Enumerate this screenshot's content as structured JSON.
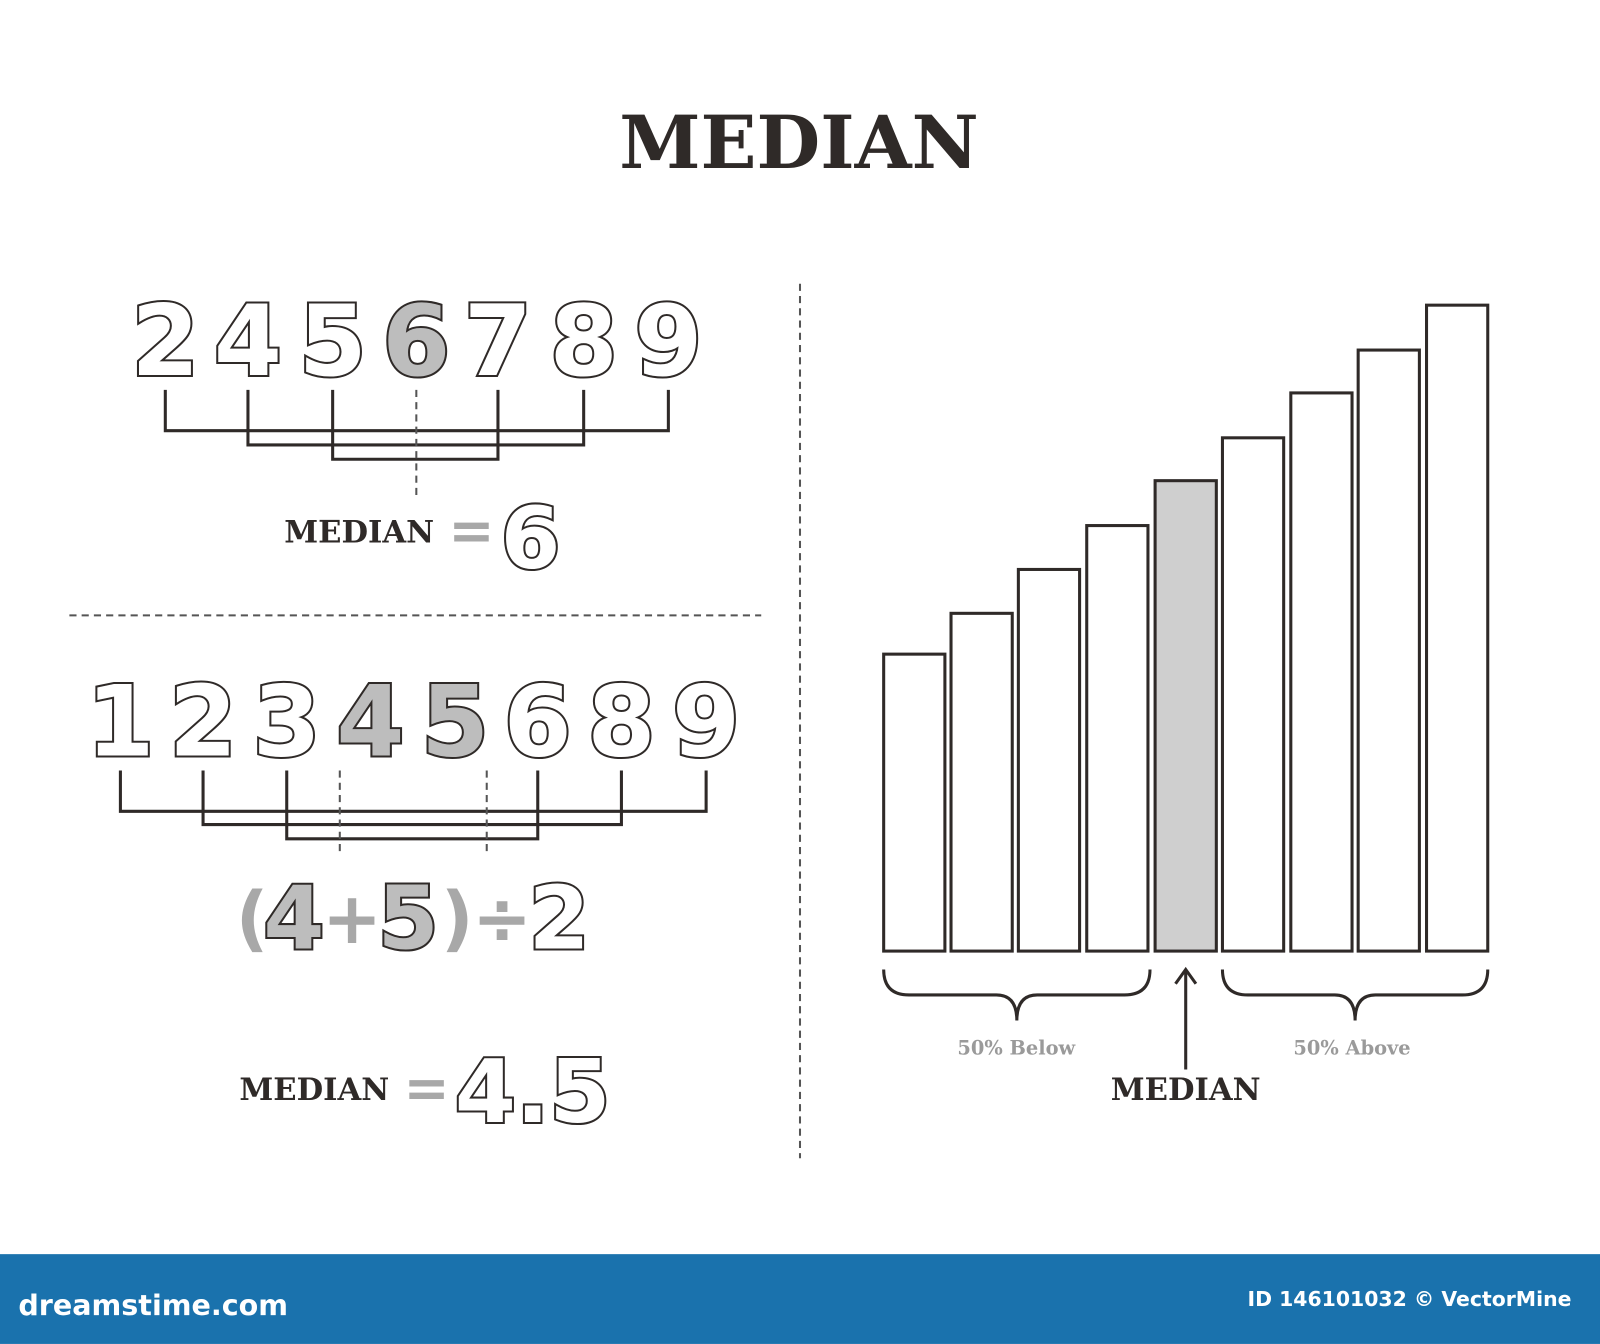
{
  "header": {
    "title": "MEDIAN"
  },
  "example_odd": {
    "numbers": [
      2,
      4,
      5,
      6,
      7,
      8,
      9
    ],
    "median_index": [
      3
    ],
    "result_label": "MEDIAN",
    "result_sign": "=",
    "result": 6
  },
  "example_even": {
    "numbers": [
      1,
      2,
      3,
      4,
      5,
      6,
      8,
      9
    ],
    "median_index": [
      3,
      4
    ],
    "formula": [
      "(",
      "4",
      "+",
      "5",
      ")",
      "÷",
      "2"
    ],
    "result_label": "MEDIAN",
    "result_sign": "=",
    "result": 4.5
  },
  "bar_diagram": {
    "bar_count": 9,
    "median_bar": 4,
    "below_label": "50% Below",
    "above_label": "50% Above",
    "median_label": "MEDIAN"
  },
  "footer": {
    "site": "dreamstime.com",
    "credit": "ID 146101032 © VectorMine"
  }
}
